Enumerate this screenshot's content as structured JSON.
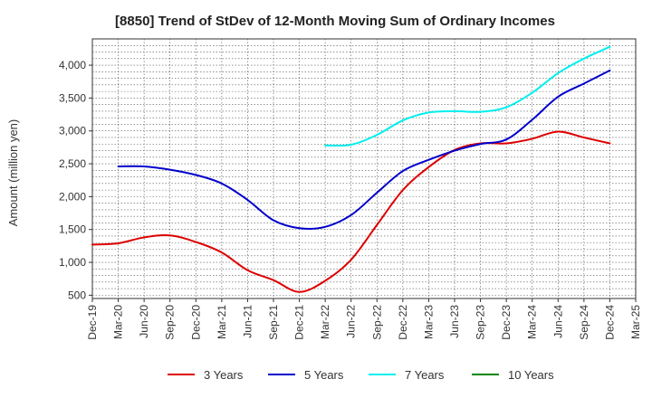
{
  "chart_data": {
    "type": "line",
    "title": "[8850]  Trend of StDev of 12-Month Moving Sum of Ordinary Incomes",
    "xlabel": "",
    "ylabel": "Amount (million yen)",
    "ylim": [
      450,
      4400
    ],
    "yticks": [
      500,
      1000,
      1500,
      2000,
      2500,
      3000,
      3500,
      4000
    ],
    "ytick_labels": [
      "500",
      "1,000",
      "1,500",
      "2,000",
      "2,500",
      "3,000",
      "3,500",
      "4,000"
    ],
    "categories": [
      "Dec-19",
      "Mar-20",
      "Jun-20",
      "Sep-20",
      "Dec-20",
      "Mar-21",
      "Jun-21",
      "Sep-21",
      "Dec-21",
      "Mar-22",
      "Jun-22",
      "Sep-22",
      "Dec-22",
      "Mar-23",
      "Jun-23",
      "Sep-23",
      "Dec-23",
      "Mar-24",
      "Jun-24",
      "Sep-24",
      "Dec-24",
      "Mar-25"
    ],
    "grid": true,
    "legend_position": "bottom",
    "series": [
      {
        "name": "3 Years",
        "color": "#dd0000",
        "values": [
          1270,
          1290,
          1380,
          1410,
          1310,
          1150,
          880,
          730,
          550,
          720,
          1040,
          1570,
          2100,
          2450,
          2710,
          2810,
          2810,
          2880,
          2990,
          2900,
          2810,
          null
        ]
      },
      {
        "name": "5 Years",
        "color": "#0000cc",
        "values": [
          null,
          2460,
          2460,
          2410,
          2330,
          2200,
          1950,
          1640,
          1520,
          1540,
          1720,
          2060,
          2390,
          2560,
          2700,
          2800,
          2870,
          3170,
          3520,
          3720,
          3920,
          null
        ]
      },
      {
        "name": "7 Years",
        "color": "#00eeee",
        "values": [
          null,
          null,
          null,
          null,
          null,
          null,
          null,
          null,
          null,
          2780,
          2790,
          2940,
          3160,
          3280,
          3300,
          3290,
          3360,
          3580,
          3880,
          4100,
          4280,
          null
        ]
      },
      {
        "name": "10 Years",
        "color": "#008800",
        "values": [
          null,
          null,
          null,
          null,
          null,
          null,
          null,
          null,
          null,
          null,
          null,
          null,
          null,
          null,
          null,
          null,
          null,
          null,
          null,
          null,
          null,
          null
        ]
      }
    ]
  }
}
